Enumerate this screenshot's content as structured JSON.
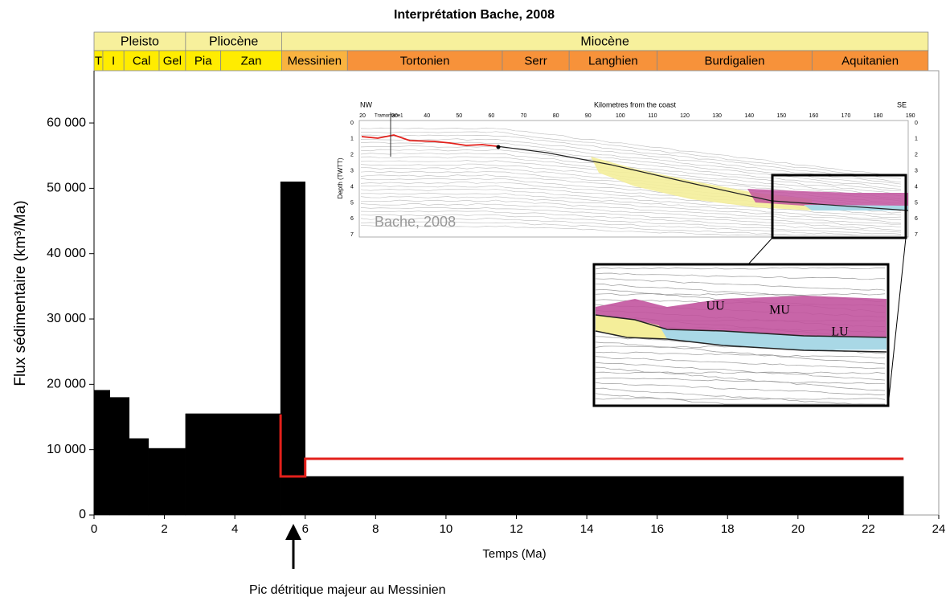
{
  "chart_data": {
    "type": "histogram",
    "title": "Interprétation Bache, 2008",
    "xlabel": "Temps (Ma)",
    "ylabel": "Flux sédimentaire (km³/Ma)",
    "bins": [
      0,
      0.45,
      1,
      1.55,
      2.6,
      5.3,
      6.0,
      23
    ],
    "values": [
      19100,
      18000,
      11700,
      10200,
      15500,
      51000,
      5900
    ],
    "color": "#000000",
    "overlay": {
      "type": "line",
      "color": "#e3201b",
      "x": [
        5.3,
        5.3,
        6.0,
        6.0,
        23
      ],
      "y": [
        15400,
        5900,
        5900,
        8600,
        8600
      ]
    },
    "xlim": [
      0,
      24
    ],
    "xticks": [
      0,
      2,
      4,
      6,
      8,
      10,
      12,
      14,
      16,
      18,
      20,
      22,
      24
    ],
    "ylim": [
      0,
      68000
    ],
    "yticks": [
      0,
      {
        "value": 10000,
        "label": "10 000"
      },
      {
        "value": 20000,
        "label": "20 000"
      },
      {
        "value": 30000,
        "label": "30 000"
      },
      {
        "value": 40000,
        "label": "40 000"
      },
      {
        "value": 50000,
        "label": "50 000"
      },
      {
        "value": 60000,
        "label": "60 000"
      }
    ],
    "annotation": "Pic détritique majeur au Messinien",
    "timescale": [
      [
        {
          "label": "Pleisto",
          "start": 0,
          "end": 2.6,
          "color": "#f7f09c"
        },
        {
          "label": "Pliocène",
          "start": 2.6,
          "end": 5.33,
          "color": "#f7f09c"
        },
        {
          "label": "Miocène",
          "start": 5.33,
          "end": 23.7,
          "color": "#f7f09c"
        }
      ],
      [
        {
          "label": "T",
          "start": 0,
          "end": 0.25,
          "color": "#ffec00"
        },
        {
          "label": "I",
          "start": 0.25,
          "end": 0.85,
          "color": "#ffec00"
        },
        {
          "label": "Cal",
          "start": 0.85,
          "end": 1.85,
          "color": "#ffec00"
        },
        {
          "label": "Gel",
          "start": 1.85,
          "end": 2.6,
          "color": "#ffec00"
        },
        {
          "label": "Pia",
          "start": 2.6,
          "end": 3.6,
          "color": "#ffec00"
        },
        {
          "label": "Zan",
          "start": 3.6,
          "end": 5.33,
          "color": "#ffec00"
        },
        {
          "label": "Messinien",
          "start": 5.33,
          "end": 7.2,
          "color": "#f9b340"
        },
        {
          "label": "Tortonien",
          "start": 7.2,
          "end": 11.6,
          "color": "#f7923a"
        },
        {
          "label": "Serr",
          "start": 11.6,
          "end": 13.5,
          "color": "#f7923a"
        },
        {
          "label": "Langhien",
          "start": 13.5,
          "end": 16.0,
          "color": "#f7923a"
        },
        {
          "label": "Burdigalien",
          "start": 16.0,
          "end": 20.4,
          "color": "#f7923a"
        },
        {
          "label": "Aquitanien",
          "start": 20.4,
          "end": 23.7,
          "color": "#f7923a"
        }
      ]
    ]
  },
  "inset": {
    "left": "NW",
    "right": "SE",
    "xlabel": "Kilometres from the coast",
    "well": "Tramontane1",
    "ylabel": "Depth (TWTT)",
    "credit": "Bache, 2008",
    "km": [
      20,
      30,
      40,
      50,
      60,
      70,
      80,
      90,
      100,
      110,
      120,
      130,
      140,
      150,
      160,
      170,
      180,
      190
    ],
    "depth": [
      0,
      1,
      2,
      3,
      4,
      5,
      6,
      7
    ],
    "units": [
      "UU",
      "MU",
      "LU"
    ]
  }
}
